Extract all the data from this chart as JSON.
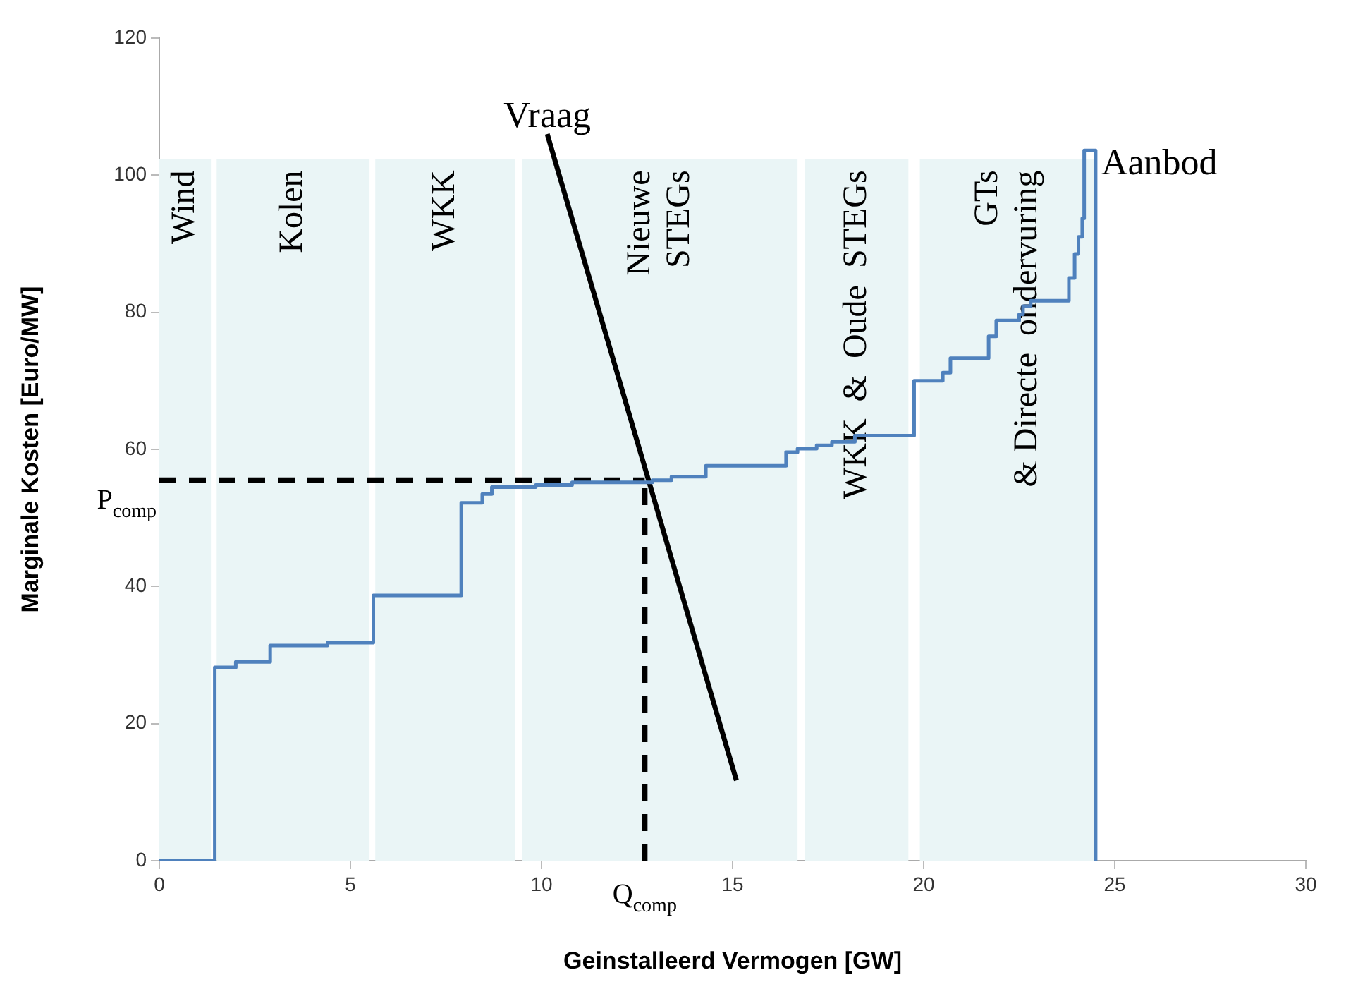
{
  "chart_data": {
    "type": "step",
    "xlabel": "Geinstalleerd Vermogen [GW]",
    "ylabel": "Marginale Kosten [Euro/MW]",
    "xlim": [
      0,
      30
    ],
    "xticks": [
      0,
      5,
      10,
      15,
      20,
      25,
      30
    ],
    "ylim": [
      0,
      120
    ],
    "yticks": [
      0,
      20,
      40,
      60,
      80,
      100,
      120
    ],
    "grid": false,
    "legend": false,
    "marker": "none",
    "series": [
      {
        "name": "Aanbod",
        "type": "step",
        "color": "#4f81bd",
        "line_style": "solid",
        "x": [
          0,
          1.45,
          2.0,
          2.9,
          4.4,
          5.6,
          7.9,
          8.45,
          8.7,
          9.85,
          10.8,
          12.9,
          13.4,
          14.3,
          16.4,
          16.7,
          17.2,
          17.6,
          18.2,
          19.75,
          20.5,
          20.7,
          21.7,
          21.9,
          22.5,
          22.6,
          22.8,
          23.8,
          23.95,
          24.05,
          24.15,
          24.2,
          24.5
        ],
        "values": [
          0,
          28.2,
          29,
          31.4,
          31.8,
          38.7,
          52.2,
          53.5,
          54.5,
          54.8,
          55.2,
          55.5,
          56,
          57.6,
          59.6,
          60.1,
          60.6,
          61.1,
          62,
          70,
          71.2,
          73.3,
          76.5,
          78.8,
          79.7,
          80.9,
          81.7,
          85,
          88.5,
          91,
          93.7,
          103.6,
          0
        ]
      },
      {
        "name": "Vraag",
        "type": "line",
        "color": "#000000",
        "line_style": "solid",
        "x": [
          10.15,
          15.1
        ],
        "values": [
          106,
          11.7
        ]
      },
      {
        "type": "line",
        "color": "#000000",
        "line_style": "dashed",
        "x": [
          0,
          12.7
        ],
        "values": [
          55.5,
          55.5
        ]
      },
      {
        "type": "line",
        "color": "#000000",
        "line_style": "dashed",
        "x": [
          12.7,
          12.7
        ],
        "values": [
          0,
          55.5
        ]
      }
    ],
    "bands": [
      {
        "axis": "x",
        "from": 0,
        "to": 1.35,
        "label": "Wind",
        "color": "#eaf5f6"
      },
      {
        "axis": "x",
        "from": 1.5,
        "to": 5.5,
        "label": "Kolen",
        "color": "#eaf5f6"
      },
      {
        "axis": "x",
        "from": 5.65,
        "to": 9.3,
        "label": "WKK",
        "color": "#eaf5f6"
      },
      {
        "axis": "x",
        "from": 9.5,
        "to": 16.7,
        "label": "Nieuwe\nSTEGs",
        "color": "#eaf5f6"
      },
      {
        "axis": "x",
        "from": 16.9,
        "to": 19.6,
        "label": "WKK  &  Oude  STEGs",
        "color": "#eaf5f6"
      },
      {
        "axis": "x",
        "from": 19.9,
        "to": 24.5,
        "label": "GTs\n& Directe  ondervuring",
        "color": "#eaf5f6"
      }
    ],
    "annotations": [
      {
        "text": "P$_{comp}$",
        "x": 0,
        "y": 55.5
      },
      {
        "text": "Q$_{comp}$",
        "x": 12.7,
        "y": 0
      }
    ]
  }
}
